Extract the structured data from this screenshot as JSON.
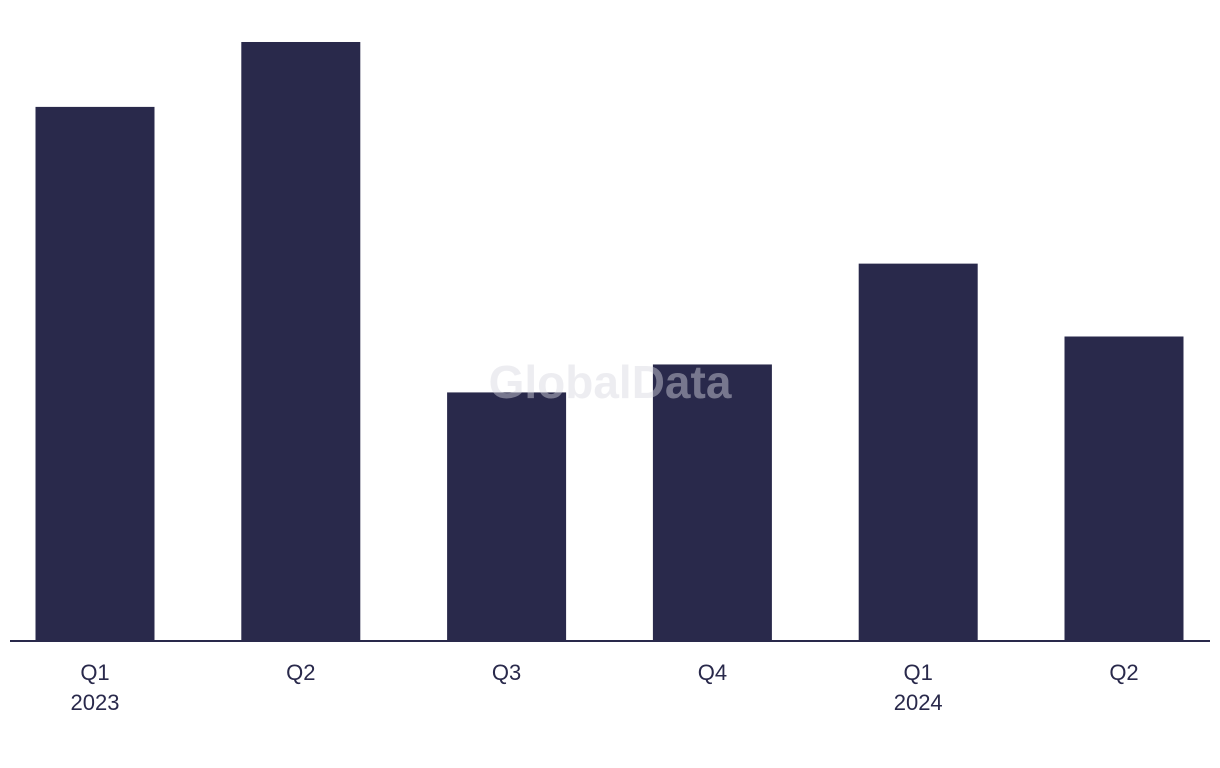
{
  "chart_data": {
    "type": "bar",
    "watermark": "GlobalData",
    "categories": [
      "Q1",
      "Q2",
      "Q3",
      "Q4",
      "Q1",
      "Q2"
    ],
    "category_years": [
      "2023",
      null,
      null,
      null,
      "2024",
      null
    ],
    "values": [
      534,
      599,
      248,
      276,
      377,
      304
    ],
    "color": "#29294b",
    "ylim": [
      0,
      600
    ]
  }
}
